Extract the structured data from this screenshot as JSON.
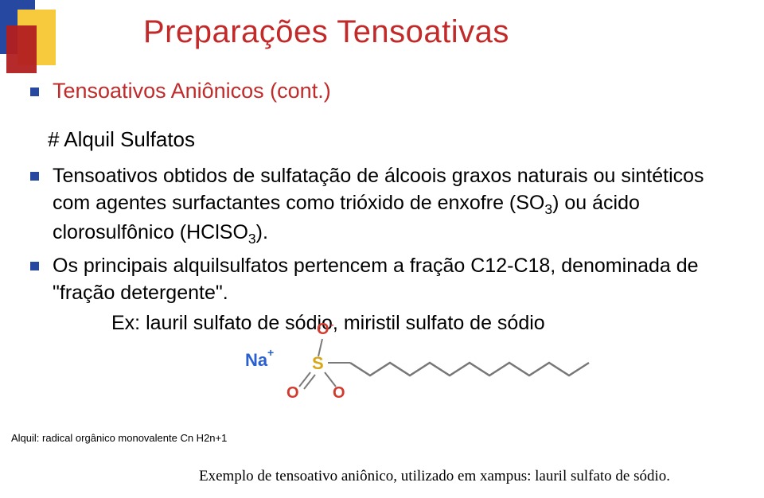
{
  "title": {
    "text": "Preparações Tensoativas",
    "color": "#c22a2a"
  },
  "bullet_color": "#2748a0",
  "section": {
    "heading": "Tensoativos Aniônicos (cont.)",
    "heading_color": "#c22a2a",
    "sub_heading": "# Alquil Sulfatos",
    "items": [
      "Tensoativos obtidos de sulfatação de álcoois graxos naturais ou sintéticos com agentes surfactantes como trióxido de enxofre (SO₃) ou ácido clorosulfônico (HClSO₃).",
      "Os principais alquilsulfatos pertencem a fração C12-C18, denominada de \"fração detergente\"."
    ],
    "example": "Ex: lauril sulfato de sódio, miristil sulfato de sódio"
  },
  "molecule": {
    "na_label": "Na",
    "na_color": "#2a5fd0",
    "s_label": "S",
    "s_color": "#d9a61a",
    "o_label": "O",
    "o_color": "#d13a2e",
    "bond_color": "#7a7a7a",
    "chain_color": "#777777"
  },
  "footnote": "Alquil: radical orgânico monovalente Cn H2n+1",
  "caption": "Exemplo de tensoativo aniônico, utilizado em xampus: lauril sulfato de sódio."
}
